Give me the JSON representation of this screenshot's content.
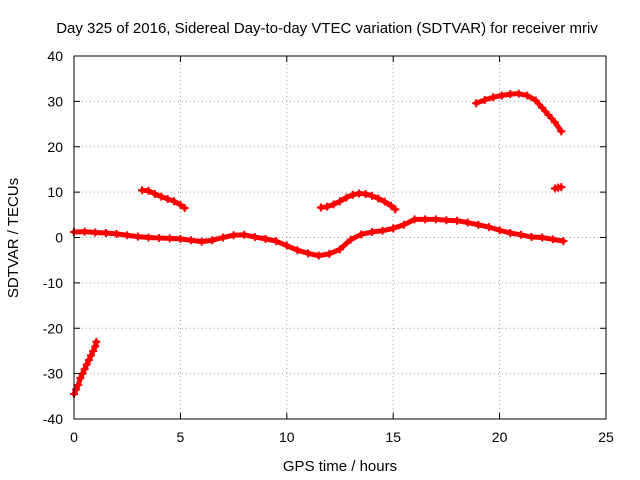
{
  "chart_data": {
    "type": "scatter",
    "title": "Day 325 of 2016, Sidereal Day-to-day VTEC variation (SDTVAR) for receiver mriv",
    "xlabel": "GPS time / hours",
    "ylabel": "SDTVAR / TECUs",
    "xlim": [
      0,
      25
    ],
    "ylim": [
      -40,
      40
    ],
    "x_ticks": [
      0,
      5,
      10,
      15,
      20,
      25
    ],
    "y_ticks": [
      -40,
      -30,
      -20,
      -10,
      0,
      10,
      20,
      30,
      40
    ],
    "x_tick_labels": [
      "0",
      "5",
      "10",
      "15",
      "20",
      "25"
    ],
    "y_tick_labels": [
      "-40",
      "-30",
      "-20",
      "-10",
      "0",
      "10",
      "20",
      "30",
      "40"
    ],
    "grid": true,
    "marker_color": "#ff0000",
    "series": [
      {
        "name": "low-elevation rising arc",
        "x": [
          0.0,
          0.1,
          0.2,
          0.3,
          0.4,
          0.5,
          0.6,
          0.7,
          0.8,
          0.9,
          1.0,
          1.05
        ],
        "y": [
          -34.5,
          -33.5,
          -32.5,
          -31.0,
          -30.0,
          -29.0,
          -28.0,
          -27.0,
          -26.0,
          -25.0,
          -24.0,
          -23.0
        ]
      },
      {
        "name": "main near-zero trace",
        "x": [
          0.0,
          0.5,
          1.0,
          1.5,
          2.0,
          2.5,
          3.0,
          3.5,
          4.0,
          4.5,
          5.0,
          5.5,
          6.0,
          6.5,
          7.0,
          7.5,
          8.0,
          8.5,
          9.0,
          9.5,
          10.0,
          10.5,
          11.0,
          11.5,
          12.0,
          12.5,
          13.0,
          13.5,
          14.0,
          14.5,
          15.0,
          15.5,
          16.0,
          16.5,
          17.0,
          17.5,
          18.0,
          18.5,
          19.0,
          19.5,
          20.0,
          20.5,
          21.0,
          21.5,
          22.0,
          22.5,
          23.0
        ],
        "y": [
          1.2,
          1.3,
          1.1,
          1.0,
          0.8,
          0.5,
          0.2,
          0.0,
          -0.1,
          -0.2,
          -0.3,
          -0.6,
          -0.9,
          -0.6,
          0.0,
          0.5,
          0.6,
          0.1,
          -0.3,
          -0.8,
          -1.8,
          -2.8,
          -3.5,
          -4.0,
          -3.6,
          -2.6,
          -0.5,
          0.7,
          1.2,
          1.5,
          2.0,
          2.8,
          4.0,
          4.0,
          4.0,
          3.8,
          3.7,
          3.3,
          2.8,
          2.3,
          1.6,
          1.0,
          0.6,
          0.1,
          0.0,
          -0.4,
          -0.8
        ]
      },
      {
        "name": "arc near 4h",
        "x": [
          3.2,
          3.5,
          3.8,
          4.1,
          4.4,
          4.7,
          5.0,
          5.2
        ],
        "y": [
          10.4,
          10.3,
          9.6,
          9.0,
          8.5,
          8.0,
          7.2,
          6.5
        ]
      },
      {
        "name": "arc near 13h",
        "x": [
          11.6,
          11.9,
          12.2,
          12.5,
          12.8,
          13.1,
          13.4,
          13.7,
          14.0,
          14.3,
          14.6,
          14.9,
          15.1
        ],
        "y": [
          6.6,
          6.8,
          7.3,
          8.0,
          8.8,
          9.4,
          9.7,
          9.6,
          9.2,
          8.6,
          7.9,
          7.0,
          6.2
        ]
      },
      {
        "name": "arc near 21h",
        "x": [
          18.9,
          19.3,
          19.7,
          20.1,
          20.5,
          20.9,
          21.3,
          21.7,
          22.0,
          22.3,
          22.6,
          22.9
        ],
        "y": [
          29.6,
          30.3,
          30.9,
          31.3,
          31.6,
          31.7,
          31.3,
          30.2,
          28.6,
          27.0,
          25.4,
          23.4
        ]
      },
      {
        "name": "short segment near 23h",
        "x": [
          22.6,
          22.75,
          22.9
        ],
        "y": [
          10.8,
          11.0,
          11.1
        ]
      }
    ]
  }
}
